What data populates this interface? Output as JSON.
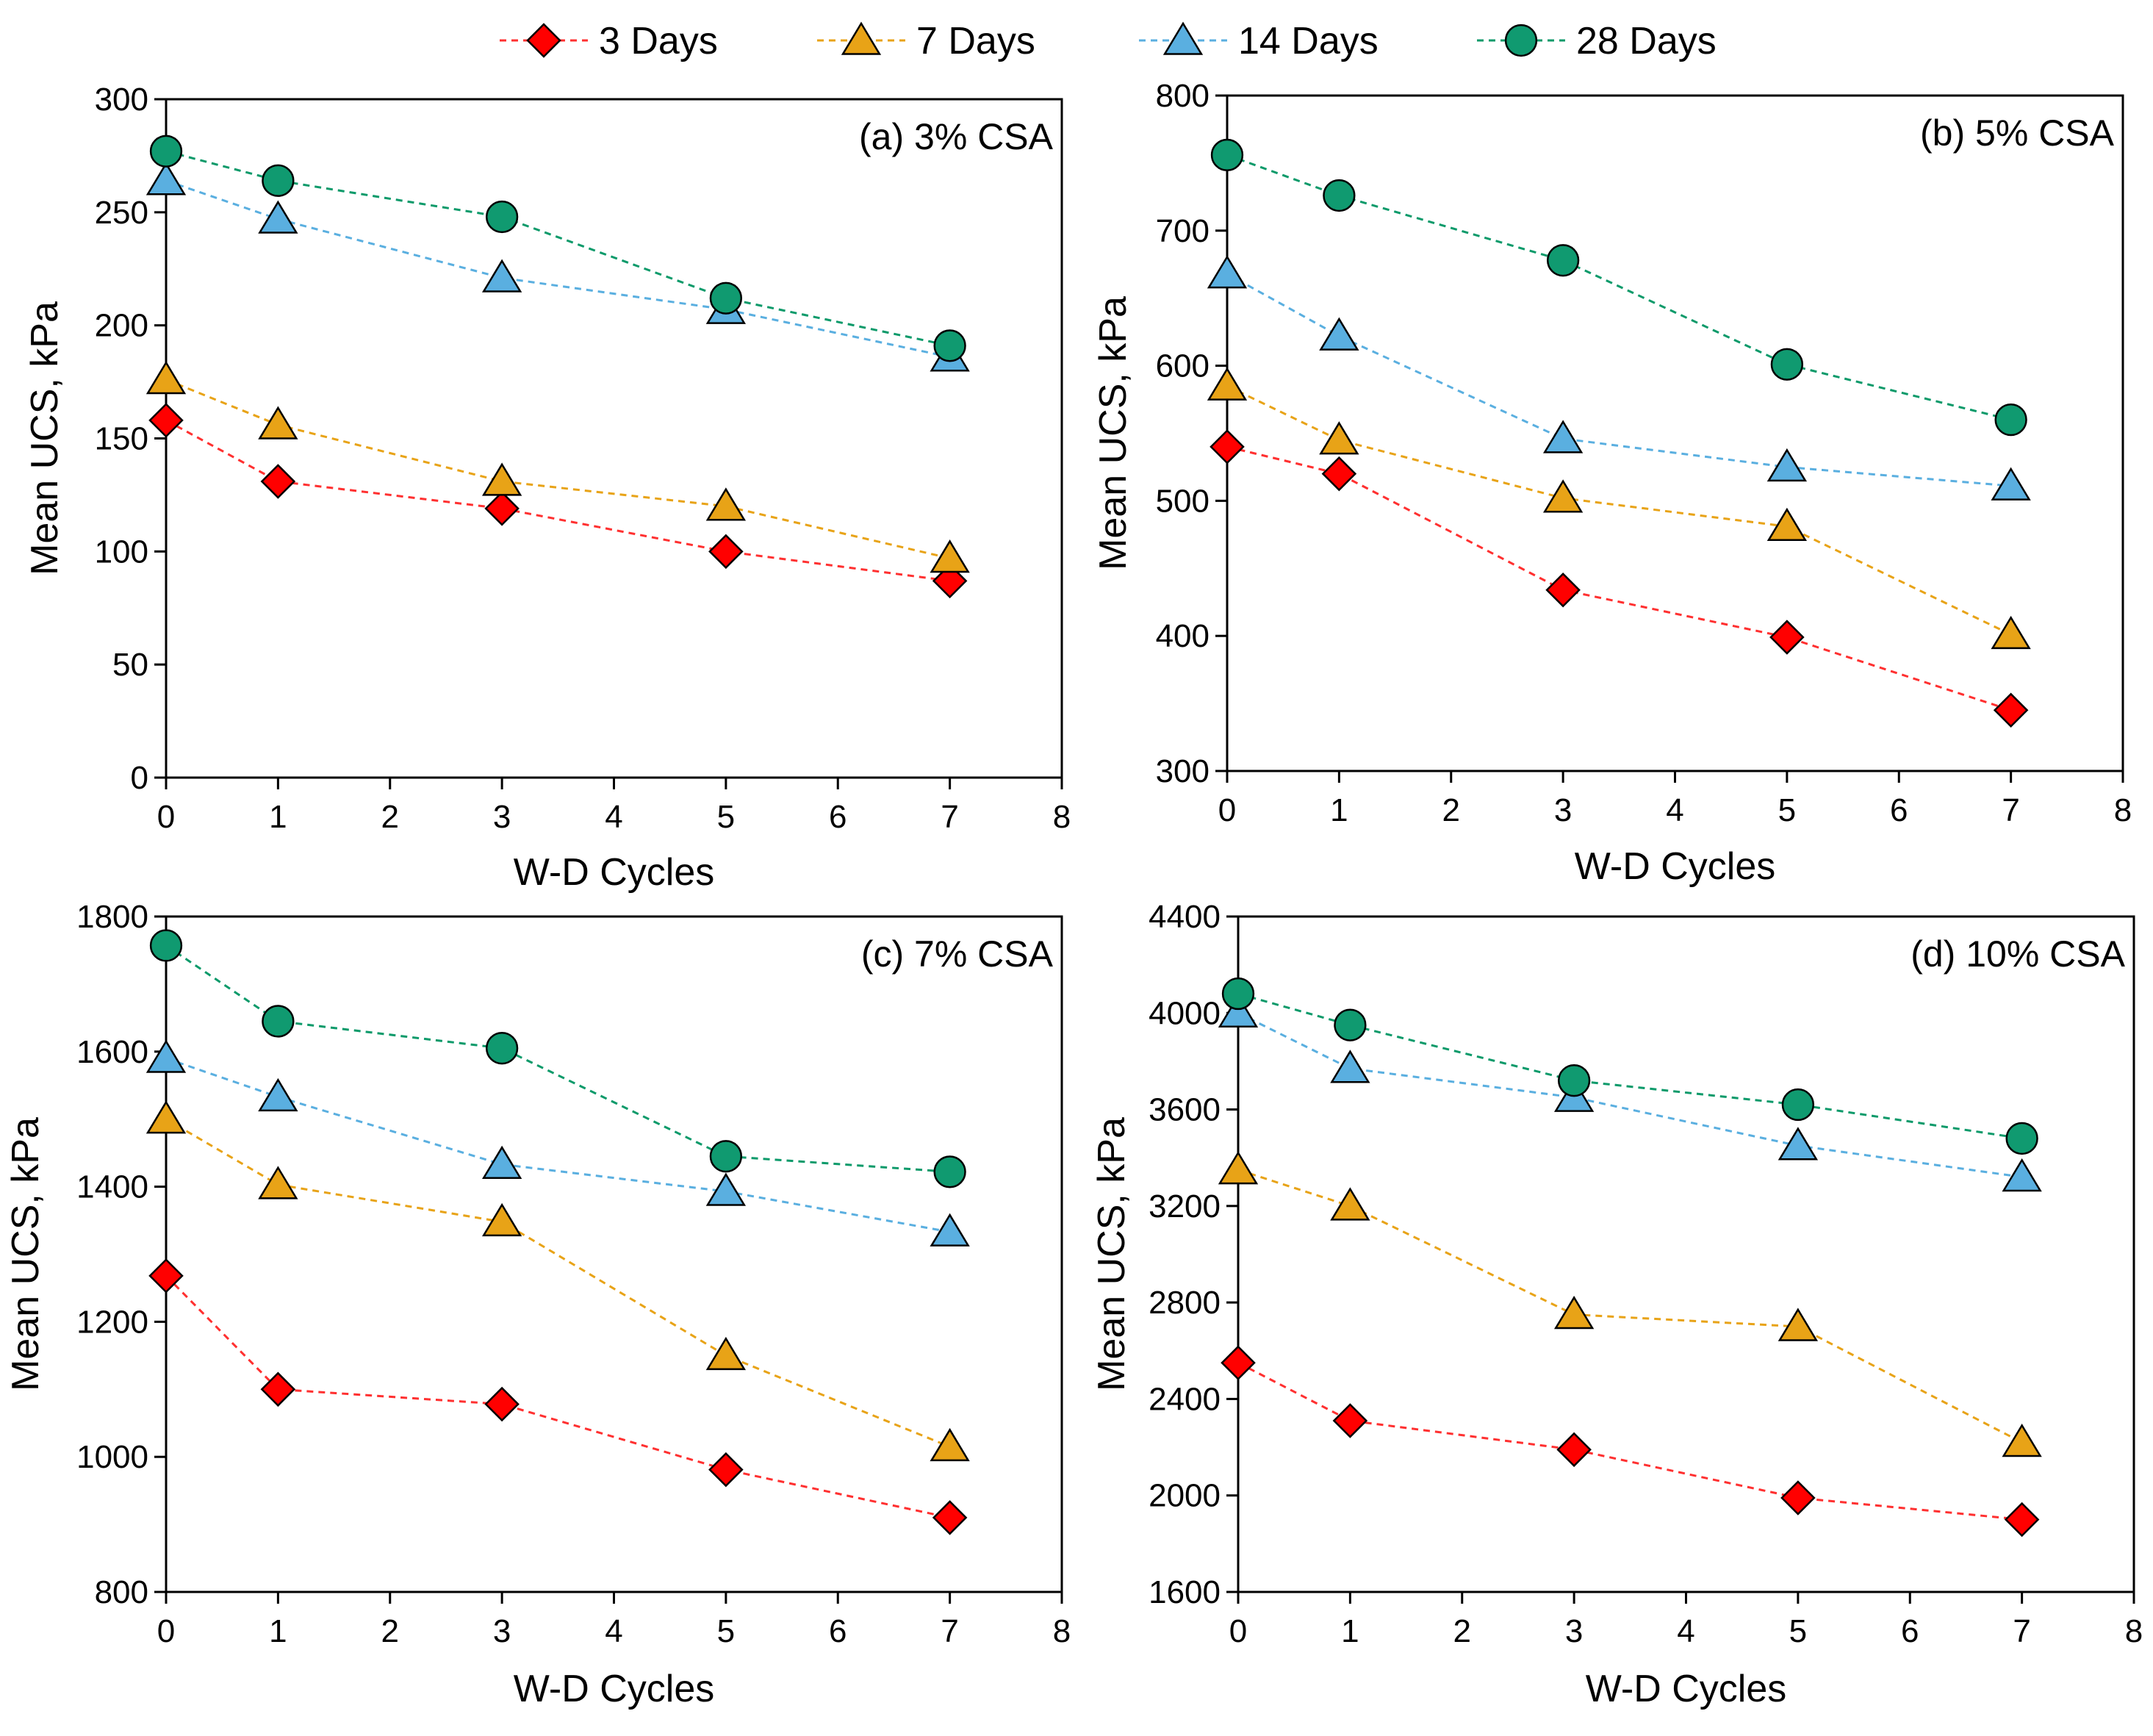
{
  "legend": [
    {
      "name": "3 Days",
      "marker": "diamond",
      "color": "#ff0000"
    },
    {
      "name": "7  Days",
      "marker": "triangle",
      "color": "#e8a317"
    },
    {
      "name": "14  Days",
      "marker": "triangle",
      "color": "#5aafe0"
    },
    {
      "name": "28  Days",
      "marker": "circle",
      "color": "#109a70"
    }
  ],
  "line_colors": {
    "3 Days": "#ff3030",
    "7  Days": "#e8a317",
    "14  Days": "#5aafe0",
    "28  Days": "#0c9a6a"
  },
  "chart_data": [
    {
      "type": "line",
      "title": "(a) 3% CSA",
      "xlabel": "W-D Cycles",
      "ylabel": "Mean UCS, kPa",
      "xlim": [
        0,
        8
      ],
      "ylim": [
        0,
        300
      ],
      "xticks": [
        0,
        1,
        2,
        3,
        4,
        5,
        6,
        7,
        8
      ],
      "yticks": [
        0,
        50,
        100,
        150,
        200,
        250,
        300
      ],
      "x": [
        0,
        1,
        3,
        5,
        7
      ],
      "series": [
        {
          "name": "3 Days",
          "values": [
            158,
            131,
            119,
            100,
            87
          ]
        },
        {
          "name": "7  Days",
          "values": [
            176,
            156,
            131,
            120,
            97
          ]
        },
        {
          "name": "14  Days",
          "values": [
            264,
            247,
            221,
            207,
            186
          ]
        },
        {
          "name": "28  Days",
          "values": [
            277,
            264,
            248,
            212,
            191
          ]
        }
      ]
    },
    {
      "type": "line",
      "title": "(b) 5% CSA",
      "xlabel": "W-D Cycles",
      "ylabel": "Mean UCS, kPa",
      "xlim": [
        0,
        8
      ],
      "ylim": [
        300,
        800
      ],
      "xticks": [
        0,
        1,
        2,
        3,
        4,
        5,
        6,
        7,
        8
      ],
      "yticks": [
        300,
        400,
        500,
        600,
        700,
        800
      ],
      "x": [
        0,
        1,
        3,
        5,
        7
      ],
      "series": [
        {
          "name": "3 Days",
          "values": [
            540,
            520,
            434,
            399,
            345
          ]
        },
        {
          "name": "7  Days",
          "values": [
            585,
            545,
            502,
            481,
            401
          ]
        },
        {
          "name": "14  Days",
          "values": [
            668,
            622,
            546,
            525,
            511
          ]
        },
        {
          "name": "28  Days",
          "values": [
            756,
            726,
            678,
            601,
            560
          ]
        }
      ]
    },
    {
      "type": "line",
      "title": "(c) 7% CSA",
      "xlabel": "W-D Cycles",
      "ylabel": "Mean UCS, kPa",
      "xlim": [
        0,
        8
      ],
      "ylim": [
        800,
        1800
      ],
      "xticks": [
        0,
        1,
        2,
        3,
        4,
        5,
        6,
        7,
        8
      ],
      "yticks": [
        800,
        1000,
        1200,
        1400,
        1600,
        1800
      ],
      "x": [
        0,
        1,
        3,
        5,
        7
      ],
      "series": [
        {
          "name": "3 Days",
          "values": [
            1268,
            1100,
            1078,
            981,
            910
          ]
        },
        {
          "name": "7  Days",
          "values": [
            1500,
            1403,
            1348,
            1150,
            1015
          ]
        },
        {
          "name": "14  Days",
          "values": [
            1590,
            1533,
            1433,
            1393,
            1333
          ]
        },
        {
          "name": "28  Days",
          "values": [
            1757,
            1645,
            1605,
            1445,
            1422
          ]
        }
      ]
    },
    {
      "type": "line",
      "title": "(d) 10% CSA",
      "xlabel": "W-D Cycles",
      "ylabel": "Mean UCS, kPa",
      "xlim": [
        0,
        8
      ],
      "ylim": [
        1600,
        4400
      ],
      "xticks": [
        0,
        1,
        2,
        3,
        4,
        5,
        6,
        7,
        8
      ],
      "yticks": [
        1600,
        2000,
        2400,
        2800,
        3200,
        3600,
        4000,
        4400
      ],
      "x": [
        0,
        1,
        3,
        5,
        7
      ],
      "series": [
        {
          "name": "3 Days",
          "values": [
            2550,
            2310,
            2190,
            1990,
            1900
          ]
        },
        {
          "name": "7  Days",
          "values": [
            3350,
            3200,
            2750,
            2700,
            2220
          ]
        },
        {
          "name": "14  Days",
          "values": [
            4000,
            3770,
            3650,
            3450,
            3320
          ]
        },
        {
          "name": "28  Days",
          "values": [
            4080,
            3950,
            3720,
            3620,
            3480
          ]
        }
      ]
    }
  ]
}
